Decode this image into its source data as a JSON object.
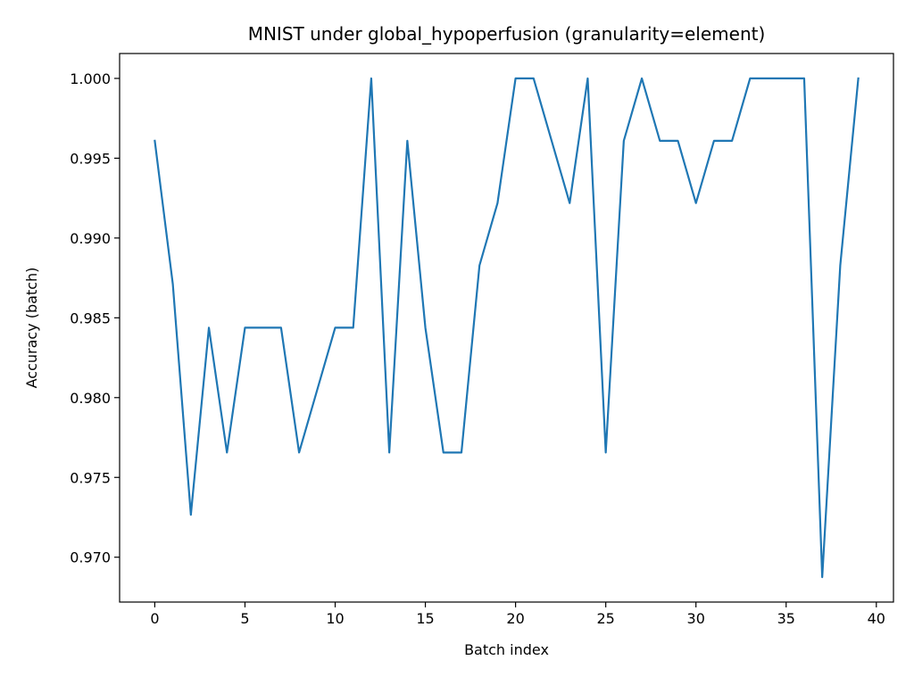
{
  "chart_data": {
    "type": "line",
    "title": "MNIST under global_hypoperfusion (granularity=element)",
    "xlabel": "Batch index",
    "ylabel": "Accuracy (batch)",
    "xlim": [
      -1.95,
      40.95
    ],
    "ylim": [
      0.96719,
      1.00156
    ],
    "x_ticks": [
      0,
      5,
      10,
      15,
      20,
      25,
      30,
      35,
      40
    ],
    "x_tick_labels": [
      "0",
      "5",
      "10",
      "15",
      "20",
      "25",
      "30",
      "35",
      "40"
    ],
    "y_ticks": [
      0.97,
      0.975,
      0.98,
      0.985,
      0.99,
      0.995,
      1.0
    ],
    "y_tick_labels": [
      "0.970",
      "0.975",
      "0.980",
      "0.985",
      "0.990",
      "0.995",
      "1.000"
    ],
    "grid": false,
    "legend": "none",
    "series": [
      {
        "color": "#1f77b4",
        "x": [
          0,
          1,
          2,
          3,
          4,
          5,
          6,
          7,
          8,
          9,
          10,
          11,
          12,
          13,
          14,
          15,
          16,
          17,
          18,
          19,
          20,
          21,
          22,
          23,
          24,
          25,
          26,
          27,
          28,
          29,
          30,
          31,
          32,
          33,
          34,
          35,
          36,
          37,
          38,
          39
        ],
        "y": [
          0.99609,
          0.98711,
          0.97266,
          0.98438,
          0.97656,
          0.98438,
          0.98438,
          0.98438,
          0.97656,
          0.98047,
          0.98438,
          0.98438,
          1.0,
          0.97656,
          0.99609,
          0.98438,
          0.97656,
          0.97656,
          0.98828,
          0.99219,
          1.0,
          1.0,
          0.99609,
          0.99219,
          1.0,
          0.97656,
          0.99609,
          1.0,
          0.99609,
          0.99609,
          0.99219,
          0.99609,
          0.99609,
          1.0,
          1.0,
          1.0,
          1.0,
          0.96875,
          0.98828,
          1.0
        ]
      }
    ]
  }
}
